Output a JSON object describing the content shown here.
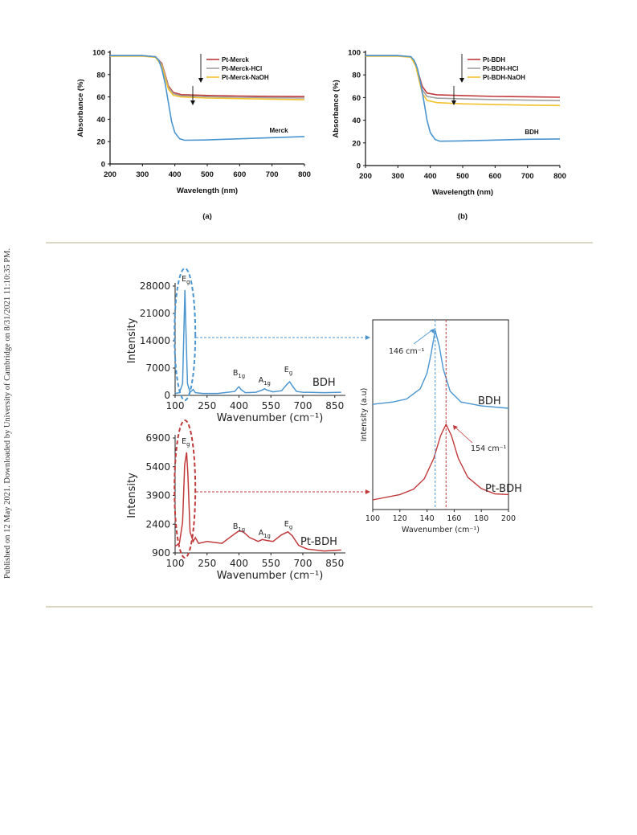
{
  "side_note": "Published on 12 May 2021. Downloaded by University of Cambridge on 8/31/2021 11:10:35 PM.",
  "colors": {
    "red": "#c0393b",
    "gray": "#a0a0a0",
    "yellow": "#f2c12e",
    "blue": "#4a95cf",
    "rule": "#dcd6c4"
  },
  "chart_data": [
    {
      "type": "line",
      "panel_label": "(a)",
      "xlabel": "Wavelength (nm)",
      "ylabel": "Absorbance (%)",
      "xlim": [
        200,
        800
      ],
      "ylim": [
        0,
        100
      ],
      "xticks": [
        200,
        300,
        400,
        500,
        600,
        700,
        800
      ],
      "yticks": [
        0,
        20,
        40,
        60,
        80,
        100
      ],
      "legend_position": "top-right",
      "series": [
        {
          "name": "Pt-Merck",
          "color": "#c0393b",
          "points": [
            [
              200,
              97
            ],
            [
              300,
              97
            ],
            [
              340,
              96
            ],
            [
              360,
              90
            ],
            [
              370,
              80
            ],
            [
              380,
              70
            ],
            [
              395,
              64
            ],
            [
              420,
              62
            ],
            [
              500,
              61.3
            ],
            [
              600,
              60.8
            ],
            [
              700,
              60.5
            ],
            [
              800,
              60.3
            ]
          ]
        },
        {
          "name": "Pt-Merck-HCl",
          "color": "#a0a0a0",
          "points": [
            [
              200,
              97
            ],
            [
              300,
              97
            ],
            [
              340,
              96
            ],
            [
              360,
              89
            ],
            [
              370,
              79
            ],
            [
              380,
              69
            ],
            [
              395,
              63
            ],
            [
              420,
              61
            ],
            [
              500,
              60.2
            ],
            [
              600,
              59.7
            ],
            [
              700,
              59.3
            ],
            [
              800,
              59
            ]
          ]
        },
        {
          "name": "Pt-Merck-NaOH",
          "color": "#f2c12e",
          "points": [
            [
              200,
              96.5
            ],
            [
              300,
              96.5
            ],
            [
              340,
              95.5
            ],
            [
              360,
              88
            ],
            [
              370,
              77
            ],
            [
              380,
              67
            ],
            [
              395,
              61.5
            ],
            [
              420,
              60
            ],
            [
              500,
              59
            ],
            [
              600,
              58.5
            ],
            [
              700,
              58
            ],
            [
              800,
              57.5
            ]
          ]
        },
        {
          "name": "Merck",
          "color": "#4a95cf",
          "points": [
            [
              200,
              97
            ],
            [
              300,
              97
            ],
            [
              340,
              96
            ],
            [
              350,
              93
            ],
            [
              360,
              85
            ],
            [
              370,
              72
            ],
            [
              380,
              55
            ],
            [
              390,
              38
            ],
            [
              400,
              28
            ],
            [
              415,
              22.5
            ],
            [
              430,
              21.2
            ],
            [
              500,
              21.5
            ],
            [
              600,
              22.5
            ],
            [
              700,
              23.5
            ],
            [
              800,
              24.5
            ]
          ]
        }
      ],
      "annotations": [
        "Merck"
      ]
    },
    {
      "type": "line",
      "panel_label": "(b)",
      "xlabel": "Wavelength (nm)",
      "ylabel": "Absorbance (%)",
      "xlim": [
        200,
        800
      ],
      "ylim": [
        0,
        100
      ],
      "xticks": [
        200,
        300,
        400,
        500,
        600,
        700,
        800
      ],
      "yticks": [
        0,
        20,
        40,
        60,
        80,
        100
      ],
      "legend_position": "top-right",
      "series": [
        {
          "name": "Pt-BDH",
          "color": "#c0393b",
          "points": [
            [
              200,
              97
            ],
            [
              300,
              97
            ],
            [
              340,
              96
            ],
            [
              355,
              90
            ],
            [
              365,
              80
            ],
            [
              375,
              70
            ],
            [
              390,
              64
            ],
            [
              420,
              62.5
            ],
            [
              500,
              61.8
            ],
            [
              600,
              61
            ],
            [
              700,
              60.7
            ],
            [
              800,
              60.3
            ]
          ]
        },
        {
          "name": "Pt-BDH-HCl",
          "color": "#a0a0a0",
          "points": [
            [
              200,
              97
            ],
            [
              300,
              97
            ],
            [
              340,
              96
            ],
            [
              355,
              89
            ],
            [
              365,
              78
            ],
            [
              375,
              67
            ],
            [
              390,
              61
            ],
            [
              420,
              59.5
            ],
            [
              500,
              58.8
            ],
            [
              600,
              58.2
            ],
            [
              700,
              57.7
            ],
            [
              800,
              57.3
            ]
          ]
        },
        {
          "name": "Pt-BDH-NaOH",
          "color": "#f2c12e",
          "points": [
            [
              200,
              96.5
            ],
            [
              300,
              96.5
            ],
            [
              340,
              95.5
            ],
            [
              355,
              88
            ],
            [
              365,
              76
            ],
            [
              375,
              64
            ],
            [
              390,
              57.5
            ],
            [
              420,
              55.5
            ],
            [
              500,
              54.5
            ],
            [
              600,
              53.8
            ],
            [
              700,
              53.3
            ],
            [
              800,
              53
            ]
          ]
        },
        {
          "name": "BDH",
          "color": "#4a95cf",
          "points": [
            [
              200,
              97
            ],
            [
              300,
              97
            ],
            [
              340,
              96
            ],
            [
              350,
              93
            ],
            [
              360,
              86
            ],
            [
              370,
              73
            ],
            [
              380,
              57
            ],
            [
              390,
              40
            ],
            [
              400,
              29
            ],
            [
              415,
              23
            ],
            [
              430,
              21.5
            ],
            [
              500,
              21.8
            ],
            [
              600,
              22.5
            ],
            [
              700,
              23.2
            ],
            [
              800,
              23.5
            ]
          ]
        }
      ],
      "annotations": [
        "BDH"
      ]
    },
    {
      "type": "line",
      "xlabel": "Wavenumber (cm⁻¹)",
      "ylabel": "Intensity",
      "xlim": [
        100,
        900
      ],
      "ylim": [
        0,
        28000
      ],
      "xticks": [
        100,
        250,
        400,
        550,
        700,
        850
      ],
      "yticks": [
        0,
        7000,
        14000,
        21000,
        28000
      ],
      "legend_position": "right",
      "series": [
        {
          "name": "BDH",
          "color": "#4a95cf",
          "points": [
            [
              100,
              500
            ],
            [
              120,
              700
            ],
            [
              135,
              3000
            ],
            [
              142,
              18000
            ],
            [
              146,
              27000
            ],
            [
              150,
              18000
            ],
            [
              158,
              3000
            ],
            [
              170,
              800
            ],
            [
              185,
              1500
            ],
            [
              195,
              700
            ],
            [
              230,
              500
            ],
            [
              300,
              500
            ],
            [
              380,
              1000
            ],
            [
              395,
              2000
            ],
            [
              400,
              2200
            ],
            [
              410,
              1500
            ],
            [
              430,
              700
            ],
            [
              480,
              800
            ],
            [
              510,
              1400
            ],
            [
              520,
              1700
            ],
            [
              530,
              1400
            ],
            [
              560,
              900
            ],
            [
              600,
              1200
            ],
            [
              625,
              2800
            ],
            [
              638,
              3500
            ],
            [
              650,
              2500
            ],
            [
              670,
              1000
            ],
            [
              700,
              800
            ],
            [
              800,
              700
            ],
            [
              880,
              800
            ]
          ]
        }
      ],
      "annotations": [
        "Eg",
        "B1g",
        "A1g",
        "Eg"
      ]
    },
    {
      "type": "line",
      "xlabel": "Wavenumber (cm⁻¹)",
      "ylabel": "Intensity",
      "xlim": [
        100,
        900
      ],
      "ylim": [
        900,
        6900
      ],
      "xticks": [
        100,
        250,
        400,
        550,
        700,
        850
      ],
      "yticks": [
        900,
        2400,
        3900,
        5400,
        6900
      ],
      "legend_position": "right",
      "series": [
        {
          "name": "Pt-BDH",
          "color": "#c0393b",
          "points": [
            [
              100,
              1250
            ],
            [
              120,
              1400
            ],
            [
              135,
              2500
            ],
            [
              145,
              5500
            ],
            [
              154,
              6150
            ],
            [
              160,
              5000
            ],
            [
              170,
              2000
            ],
            [
              185,
              1500
            ],
            [
              195,
              1700
            ],
            [
              210,
              1400
            ],
            [
              250,
              1500
            ],
            [
              320,
              1400
            ],
            [
              380,
              1900
            ],
            [
              400,
              2050
            ],
            [
              420,
              2000
            ],
            [
              450,
              1700
            ],
            [
              490,
              1500
            ],
            [
              510,
              1600
            ],
            [
              530,
              1550
            ],
            [
              560,
              1500
            ],
            [
              600,
              1850
            ],
            [
              630,
              2000
            ],
            [
              650,
              1800
            ],
            [
              680,
              1300
            ],
            [
              720,
              1100
            ],
            [
              800,
              1000
            ],
            [
              880,
              1050
            ]
          ]
        }
      ],
      "annotations": [
        "Eg",
        "B1g",
        "A1g",
        "Eg"
      ]
    },
    {
      "type": "line",
      "xlabel": "Wavenumber (cm⁻¹)",
      "ylabel": "Intensity (a.u)",
      "xlim": [
        100,
        200
      ],
      "xticks": [
        100,
        120,
        140,
        160,
        180,
        200
      ],
      "legend_position": "right",
      "series": [
        {
          "name": "BDH",
          "color": "#4a95cf",
          "points": [
            [
              100,
              0.05
            ],
            [
              115,
              0.08
            ],
            [
              125,
              0.12
            ],
            [
              135,
              0.25
            ],
            [
              140,
              0.45
            ],
            [
              143,
              0.7
            ],
            [
              146,
              1
            ],
            [
              149,
              0.8
            ],
            [
              152,
              0.5
            ],
            [
              157,
              0.22
            ],
            [
              165,
              0.08
            ],
            [
              180,
              0.03
            ],
            [
              200,
              0
            ]
          ]
        },
        {
          "name": "Pt-BDH",
          "color": "#c0393b",
          "points": [
            [
              100,
              0
            ],
            [
              120,
              0.07
            ],
            [
              130,
              0.14
            ],
            [
              138,
              0.28
            ],
            [
              145,
              0.55
            ],
            [
              150,
              0.85
            ],
            [
              154,
              1
            ],
            [
              158,
              0.85
            ],
            [
              163,
              0.55
            ],
            [
              170,
              0.3
            ],
            [
              180,
              0.15
            ],
            [
              190,
              0.08
            ],
            [
              200,
              0.07
            ]
          ]
        }
      ],
      "annotations": [
        "146 cm⁻¹",
        "154 cm⁻¹"
      ]
    }
  ]
}
